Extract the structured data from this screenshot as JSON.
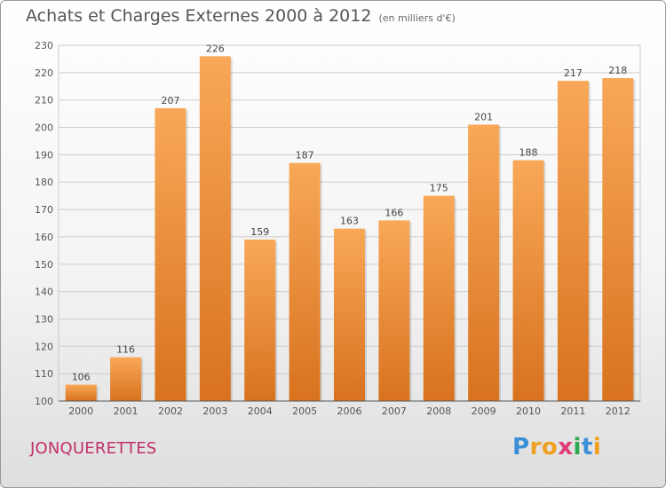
{
  "header": {
    "title": "Achats et Charges Externes 2000 à 2012",
    "subtitle": "(en milliers d'€)"
  },
  "footer": {
    "place": "JONQUERETTES",
    "logo_letters": [
      "P",
      "r",
      "o",
      "x",
      "i",
      "t",
      "i"
    ],
    "logo_colors": [
      "#3b8fd6",
      "#f0a020",
      "#f0a020",
      "#e03a7a",
      "#2fa84f",
      "#3b8fd6",
      "#f0a020"
    ]
  },
  "chart_data": {
    "type": "bar",
    "categories": [
      "2000",
      "2001",
      "2002",
      "2003",
      "2004",
      "2005",
      "2006",
      "2007",
      "2008",
      "2009",
      "2010",
      "2011",
      "2012"
    ],
    "values": [
      106,
      116,
      207,
      226,
      159,
      187,
      163,
      166,
      175,
      201,
      188,
      217,
      218
    ],
    "title": "Achats et Charges Externes 2000 à 2012",
    "ylim": [
      100,
      230
    ],
    "yticks": [
      100,
      110,
      120,
      130,
      140,
      150,
      160,
      170,
      180,
      190,
      200,
      210,
      220,
      230
    ],
    "grid": true,
    "colors": {
      "bar_top": "#f8a858",
      "bar_bottom": "#d8721e",
      "grid": "#cccccc",
      "axis": "#555555"
    }
  }
}
